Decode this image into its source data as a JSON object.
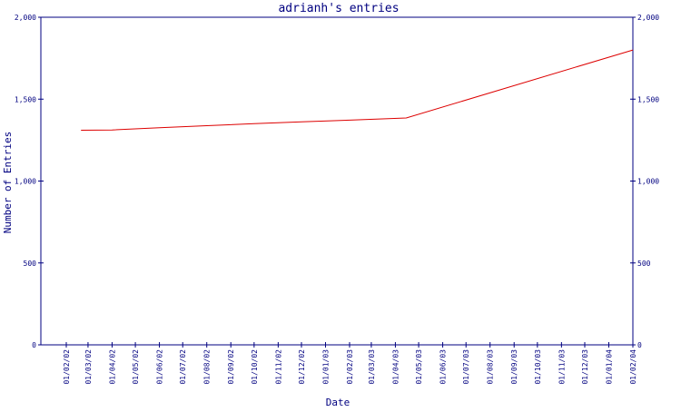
{
  "chart_data": {
    "type": "line",
    "title": "adrianh's entries",
    "xlabel": "Date",
    "ylabel": "Number of Entries",
    "x_ticks": [
      "01/02/02",
      "01/03/02",
      "01/04/02",
      "01/05/02",
      "01/06/02",
      "01/07/02",
      "01/08/02",
      "01/09/02",
      "01/10/02",
      "01/11/02",
      "01/12/02",
      "01/01/03",
      "01/02/03",
      "01/03/03",
      "01/04/03",
      "01/05/03",
      "01/06/03",
      "01/07/03",
      "01/08/03",
      "01/09/03",
      "01/10/03",
      "01/11/03",
      "01/12/03",
      "01/01/04",
      "01/02/04"
    ],
    "y_ticks": [
      "0",
      "500",
      "1,000",
      "1,500",
      "2,000"
    ],
    "ylim": [
      0,
      2000
    ],
    "grid": false,
    "axes_color": "#000080",
    "text_color": "#000080",
    "series": [
      {
        "color": "#dd0000",
        "points": [
          {
            "x": "2002-02-20",
            "y": 1310
          },
          {
            "x": "2002-04-01",
            "y": 1312
          },
          {
            "x": "2002-06-01",
            "y": 1325
          },
          {
            "x": "2002-08-01",
            "y": 1338
          },
          {
            "x": "2002-10-01",
            "y": 1350
          },
          {
            "x": "2002-12-01",
            "y": 1362
          },
          {
            "x": "2003-02-01",
            "y": 1372
          },
          {
            "x": "2003-04-15",
            "y": 1385
          },
          {
            "x": "2004-02-01",
            "y": 1800
          }
        ]
      }
    ]
  }
}
